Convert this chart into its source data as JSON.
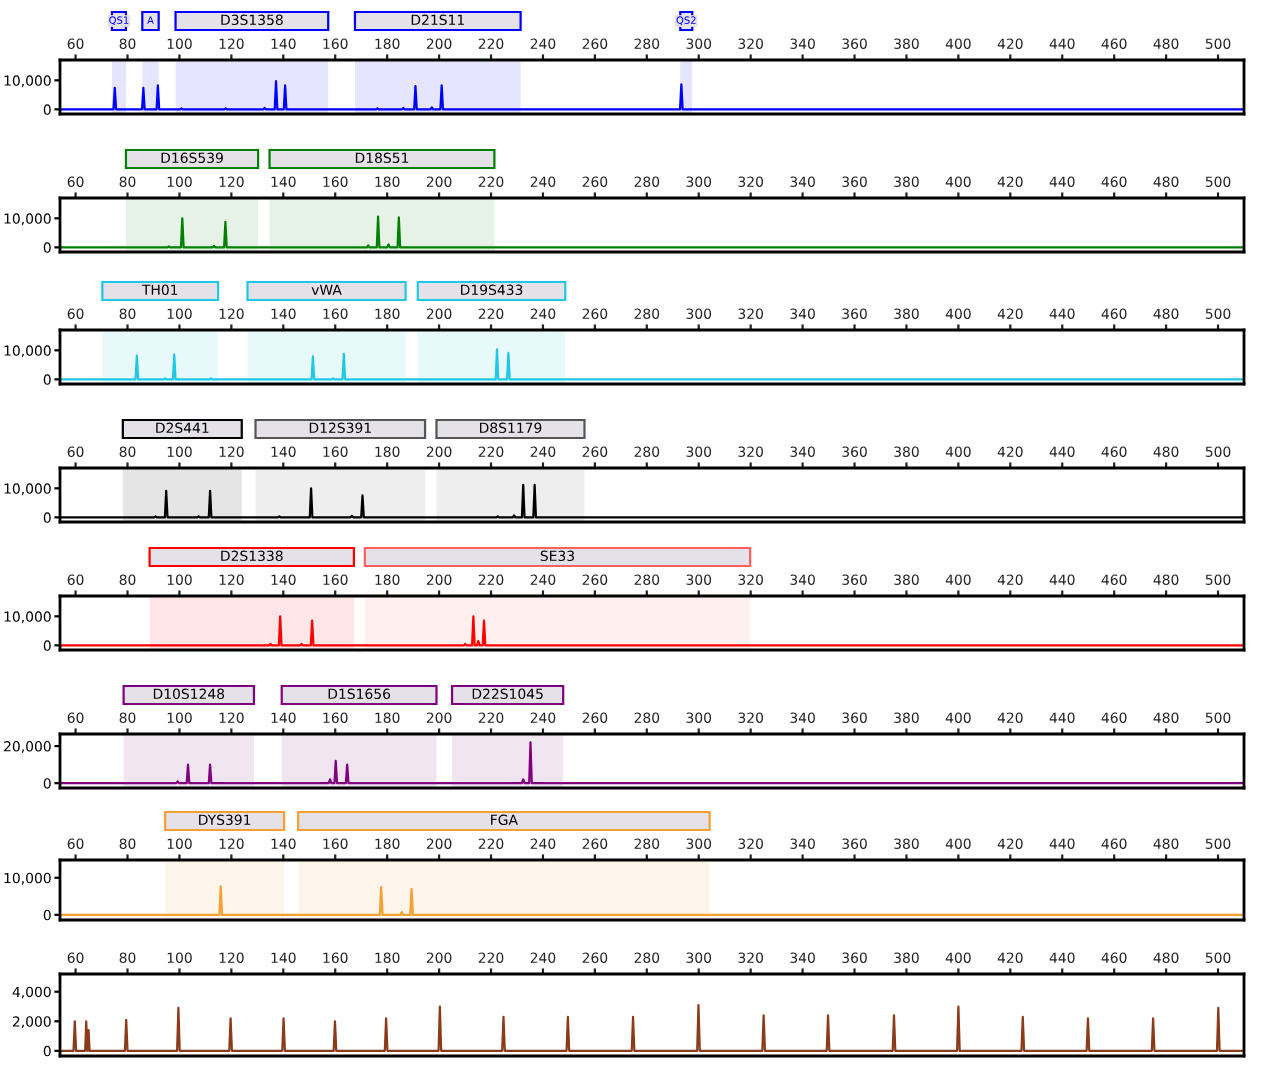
{
  "chart_data": [
    {
      "type": "line",
      "color": "#0000ff",
      "xlim": [
        54,
        510
      ],
      "xticks": [
        60,
        80,
        100,
        120,
        140,
        160,
        180,
        200,
        220,
        240,
        260,
        280,
        300,
        320,
        340,
        360,
        380,
        400,
        420,
        440,
        460,
        480,
        500
      ],
      "ylim": [
        -1600,
        17000
      ],
      "yticks": [
        0,
        {
          "value": 10000,
          "label": "10,000"
        }
      ],
      "grid": false,
      "bands": [
        {
          "axis": "x",
          "from": 74,
          "to": 79.4,
          "label": "QS1",
          "color": "#0000ff"
        },
        {
          "axis": "x",
          "from": 85.7,
          "to": 92,
          "label": "A",
          "color": "#0000ff"
        },
        {
          "axis": "x",
          "from": 98.5,
          "to": 157.3,
          "label": "D3S1358",
          "color": "#0000ff"
        },
        {
          "axis": "x",
          "from": 167.6,
          "to": 231.4,
          "label": "D21S11",
          "color": "#0000ff"
        },
        {
          "axis": "x",
          "from": 292.9,
          "to": 297.5,
          "label": "QS2",
          "color": "#0000ff"
        }
      ],
      "x": [
        54,
        74.6,
        75.1,
        75.6,
        85.6,
        86.1,
        86.6,
        91.2,
        91.7,
        92.2,
        100.3,
        100.8,
        101.3,
        117.3,
        117.8,
        118.3,
        132.3,
        132.8,
        133.3,
        136.7,
        137.2,
        137.7,
        140.2,
        140.7,
        141.2,
        175.7,
        176.2,
        176.7,
        185.7,
        186.2,
        186.7,
        190.4,
        190.9,
        191.4,
        196.7,
        197.2,
        197.7,
        200.5,
        201,
        201.5,
        292.8,
        293.3,
        293.8,
        510
      ],
      "values": [
        0,
        0,
        7400,
        0,
        0,
        7400,
        0,
        0,
        8300,
        0,
        0,
        300,
        0,
        0,
        300,
        0,
        0,
        500,
        0,
        0,
        9700,
        0,
        0,
        8300,
        0,
        0,
        300,
        0,
        0,
        500,
        0,
        0,
        8000,
        0,
        0,
        700,
        0,
        0,
        8300,
        0,
        0,
        8600,
        0,
        0
      ]
    },
    {
      "type": "line",
      "color": "#008000",
      "xlim": [
        54,
        510
      ],
      "xticks": [
        60,
        80,
        100,
        120,
        140,
        160,
        180,
        200,
        220,
        240,
        260,
        280,
        300,
        320,
        340,
        360,
        380,
        400,
        420,
        440,
        460,
        480,
        500
      ],
      "ylim": [
        -1600,
        17000
      ],
      "yticks": [
        0,
        {
          "value": 10000,
          "label": "10,000"
        }
      ],
      "grid": false,
      "bands": [
        {
          "axis": "x",
          "from": 79.4,
          "to": 130.3,
          "label": "D16S539",
          "color": "#008000"
        },
        {
          "axis": "x",
          "from": 134.7,
          "to": 221.3,
          "label": "D18S51",
          "color": "#008000"
        }
      ],
      "x": [
        54,
        95.4,
        95.9,
        96.4,
        100.6,
        101.1,
        101.6,
        112.8,
        113.3,
        113.8,
        117.2,
        117.7,
        118.2,
        172.2,
        172.7,
        173.2,
        176,
        176.5,
        177,
        180,
        180.5,
        181,
        184,
        184.5,
        185,
        510
      ],
      "values": [
        0,
        0,
        300,
        0,
        0,
        10000,
        0,
        0,
        500,
        0,
        0,
        8800,
        0,
        0,
        700,
        0,
        0,
        10600,
        0,
        0,
        1000,
        0,
        0,
        10300,
        0,
        0
      ]
    },
    {
      "type": "line",
      "color": "#1ec8e6",
      "xlim": [
        54,
        510
      ],
      "xticks": [
        60,
        80,
        100,
        120,
        140,
        160,
        180,
        200,
        220,
        240,
        260,
        280,
        300,
        320,
        340,
        360,
        380,
        400,
        420,
        440,
        460,
        480,
        500
      ],
      "ylim": [
        -1600,
        17000
      ],
      "yticks": [
        0,
        {
          "value": 10000,
          "label": "10,000"
        }
      ],
      "grid": false,
      "bands": [
        {
          "axis": "x",
          "from": 70.3,
          "to": 114.9,
          "label": "TH01",
          "color": "#1ec8e6"
        },
        {
          "axis": "x",
          "from": 126.2,
          "to": 187.1,
          "label": "vWA",
          "color": "#1ec8e6"
        },
        {
          "axis": "x",
          "from": 191.8,
          "to": 248.6,
          "label": "D19S433",
          "color": "#1ec8e6"
        }
      ],
      "x": [
        54,
        83.1,
        83.6,
        84.1,
        94.1,
        94.6,
        95.1,
        97.5,
        98,
        98.5,
        111.6,
        112.1,
        112.6,
        150.9,
        151.4,
        151.9,
        158.7,
        159.2,
        159.7,
        162.8,
        163.3,
        163.8,
        221.8,
        222.3,
        222.8,
        226.2,
        226.7,
        227.2,
        510
      ],
      "values": [
        0,
        0,
        8200,
        0,
        0,
        300,
        0,
        0,
        8500,
        0,
        0,
        300,
        0,
        0,
        7900,
        0,
        0,
        300,
        0,
        0,
        8800,
        0,
        0,
        10300,
        0,
        0,
        9100,
        0,
        0
      ]
    },
    {
      "type": "line",
      "color": "#000000",
      "xlim": [
        54,
        510
      ],
      "xticks": [
        60,
        80,
        100,
        120,
        140,
        160,
        180,
        200,
        220,
        240,
        260,
        280,
        300,
        320,
        340,
        360,
        380,
        400,
        420,
        440,
        460,
        480,
        500
      ],
      "ylim": [
        -1600,
        17000
      ],
      "yticks": [
        0,
        {
          "value": 10000,
          "label": "10,000"
        }
      ],
      "grid": false,
      "bands": [
        {
          "axis": "x",
          "from": 78.2,
          "to": 124,
          "label": "D2S441",
          "color": "#000000"
        },
        {
          "axis": "x",
          "from": 129.3,
          "to": 194.6,
          "label": "D12S391",
          "color": "#555555"
        },
        {
          "axis": "x",
          "from": 199,
          "to": 256,
          "label": "D8S1179",
          "color": "#555555"
        }
      ],
      "x": [
        54,
        90.3,
        90.8,
        91.3,
        94.4,
        94.9,
        95.4,
        106.9,
        107.4,
        107.9,
        111.3,
        111.8,
        112.3,
        138,
        138.5,
        139,
        150.2,
        150.7,
        151.2,
        165.9,
        166.4,
        166.9,
        170,
        170.5,
        171,
        222.1,
        222.6,
        223.1,
        228.4,
        228.9,
        229.4,
        231.9,
        232.4,
        232.9,
        236.3,
        236.8,
        237.3,
        510
      ],
      "values": [
        0,
        0,
        300,
        0,
        0,
        9100,
        0,
        0,
        300,
        0,
        0,
        9100,
        0,
        0,
        300,
        0,
        0,
        10000,
        0,
        0,
        500,
        0,
        0,
        7600,
        0,
        0,
        300,
        0,
        0,
        700,
        0,
        0,
        11200,
        0,
        0,
        11200,
        0,
        0
      ]
    },
    {
      "type": "line",
      "color": "#ff0000",
      "xlim": [
        54,
        510
      ],
      "xticks": [
        60,
        80,
        100,
        120,
        140,
        160,
        180,
        200,
        220,
        240,
        260,
        280,
        300,
        320,
        340,
        360,
        380,
        400,
        420,
        440,
        460,
        480,
        500
      ],
      "ylim": [
        -1600,
        17000
      ],
      "yticks": [
        0,
        {
          "value": 10000,
          "label": "10,000"
        }
      ],
      "grid": false,
      "bands": [
        {
          "axis": "x",
          "from": 88.5,
          "to": 167.2,
          "label": "D2S1338",
          "color": "#ff0000"
        },
        {
          "axis": "x",
          "from": 171.4,
          "to": 319.8,
          "label": "SE33",
          "color": "#ff6060"
        }
      ],
      "x": [
        54,
        134.5,
        135,
        135.5,
        138.3,
        138.8,
        139.3,
        146.5,
        147,
        147.5,
        150.6,
        151.1,
        151.6,
        209.6,
        210.1,
        210.6,
        212.7,
        213.2,
        213.7,
        214.6,
        215.1,
        215.6,
        216.8,
        217.3,
        217.8,
        510
      ],
      "values": [
        0,
        0,
        500,
        0,
        0,
        10000,
        0,
        0,
        500,
        0,
        0,
        8500,
        0,
        0,
        500,
        0,
        0,
        10000,
        0,
        0,
        1500,
        0,
        0,
        8500,
        0,
        0
      ]
    },
    {
      "type": "line",
      "color": "#800080",
      "xlim": [
        54,
        510
      ],
      "xticks": [
        60,
        80,
        100,
        120,
        140,
        160,
        180,
        200,
        220,
        240,
        260,
        280,
        300,
        320,
        340,
        360,
        380,
        400,
        420,
        440,
        460,
        480,
        500
      ],
      "ylim": [
        -2600,
        26500
      ],
      "yticks": [
        0,
        {
          "value": 20000,
          "label": "20,000"
        }
      ],
      "grid": false,
      "bands": [
        {
          "axis": "x",
          "from": 78.5,
          "to": 128.7,
          "label": "D10S1248",
          "color": "#800080"
        },
        {
          "axis": "x",
          "from": 139.4,
          "to": 199,
          "label": "D1S1656",
          "color": "#800080"
        },
        {
          "axis": "x",
          "from": 205,
          "to": 247.8,
          "label": "D22S1045",
          "color": "#800080"
        }
      ],
      "x": [
        54,
        98.8,
        99.3,
        99.8,
        102.8,
        103.3,
        103.8,
        111.3,
        111.8,
        112.3,
        157.5,
        158,
        158.5,
        159.7,
        160.2,
        160.7,
        164.1,
        164.6,
        165.1,
        231.9,
        232.4,
        232.9,
        234.7,
        235.2,
        235.7,
        510
      ],
      "values": [
        0,
        0,
        1000,
        0,
        0,
        10000,
        0,
        0,
        10000,
        0,
        0,
        2000,
        0,
        0,
        12000,
        0,
        0,
        10000,
        0,
        0,
        2000,
        0,
        0,
        22000,
        0,
        0
      ]
    },
    {
      "type": "line",
      "color": "#f5a030",
      "xlim": [
        54,
        510
      ],
      "xticks": [
        60,
        80,
        100,
        120,
        140,
        160,
        180,
        200,
        220,
        240,
        260,
        280,
        300,
        320,
        340,
        360,
        380,
        400,
        420,
        440,
        460,
        480,
        500
      ],
      "ylim": [
        -1400,
        14800
      ],
      "yticks": [
        0,
        {
          "value": 10000,
          "label": "10,000"
        }
      ],
      "grid": false,
      "bands": [
        {
          "axis": "x",
          "from": 94.5,
          "to": 140.3,
          "label": "DYS391",
          "color": "#f5a030"
        },
        {
          "axis": "x",
          "from": 145.7,
          "to": 304.2,
          "label": "FGA",
          "color": "#f5a030"
        }
      ],
      "x": [
        54,
        115.4,
        115.9,
        116.4,
        177.2,
        177.7,
        178.2,
        185.1,
        185.6,
        186.1,
        188.9,
        189.4,
        189.9,
        510
      ],
      "values": [
        0,
        0,
        7700,
        0,
        0,
        7500,
        0,
        0,
        700,
        0,
        0,
        7000,
        0,
        0
      ]
    },
    {
      "type": "line",
      "color": "#8b3a1a",
      "xlim": [
        54,
        510
      ],
      "xticks": [
        60,
        80,
        100,
        120,
        140,
        160,
        180,
        200,
        220,
        240,
        260,
        280,
        300,
        320,
        340,
        360,
        380,
        400,
        420,
        440,
        460,
        480,
        500
      ],
      "ylim": [
        -350,
        5200
      ],
      "yticks": [
        0,
        {
          "value": 2000,
          "label": "2,000"
        },
        {
          "value": 4000,
          "label": "4,000"
        }
      ],
      "grid": false,
      "x": [
        54,
        59.2,
        59.7,
        60.2,
        63.7,
        64.1,
        64.5,
        64.6,
        65,
        65.4,
        79,
        79.5,
        80,
        99.1,
        99.6,
        100.1,
        119.2,
        119.7,
        120.2,
        139.6,
        140.1,
        140.6,
        159.4,
        159.9,
        160.4,
        179.1,
        179.6,
        180.1,
        199.8,
        200.3,
        200.8,
        224.3,
        224.8,
        225.3,
        249.1,
        249.6,
        250.1,
        274.2,
        274.7,
        275.2,
        299.4,
        299.9,
        300.4,
        324.5,
        325,
        325.5,
        349.3,
        349.8,
        350.3,
        374.7,
        375.2,
        375.7,
        399.5,
        400,
        400.5,
        424.3,
        424.8,
        425.3,
        449.4,
        449.9,
        450.4,
        474.5,
        475,
        475.5,
        499.6,
        500.1,
        500.6,
        510
      ],
      "values": [
        0,
        0,
        2000,
        0,
        0,
        2000,
        0,
        0,
        1400,
        0,
        0,
        2100,
        0,
        0,
        2900,
        0,
        0,
        2200,
        0,
        0,
        2200,
        0,
        0,
        2000,
        0,
        0,
        2200,
        0,
        0,
        3000,
        0,
        0,
        2300,
        0,
        0,
        2300,
        0,
        0,
        2300,
        0,
        0,
        3100,
        0,
        0,
        2400,
        0,
        0,
        2400,
        0,
        0,
        2400,
        0,
        0,
        3000,
        0,
        0,
        2300,
        0,
        0,
        2200,
        0,
        0,
        2200,
        0,
        0,
        2900,
        0,
        0
      ]
    }
  ]
}
